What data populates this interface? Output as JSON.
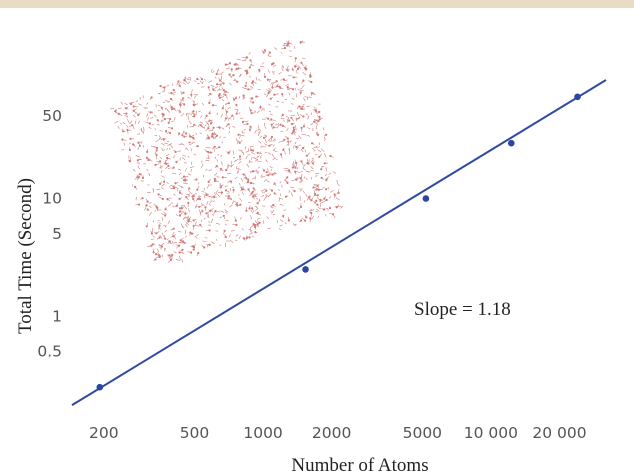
{
  "chart_data": {
    "type": "scatter",
    "xscale": "log",
    "yscale": "log",
    "xlabel": "Number of Atoms",
    "ylabel": "Total Time (Second)",
    "xlim": [
      145,
      32000
    ],
    "ylim": [
      0.16,
      150
    ],
    "xticks": [
      {
        "v": 200,
        "label": "200"
      },
      {
        "v": 500,
        "label": "500"
      },
      {
        "v": 1000,
        "label": "1000"
      },
      {
        "v": 2000,
        "label": "2000"
      },
      {
        "v": 5000,
        "label": "5000"
      },
      {
        "v": 10000,
        "label": "10 000"
      },
      {
        "v": 20000,
        "label": "20 000"
      }
    ],
    "yticks": [
      {
        "v": 0.5,
        "label": "0.5"
      },
      {
        "v": 1,
        "label": "1"
      },
      {
        "v": 5,
        "label": "5"
      },
      {
        "v": 10,
        "label": "10"
      },
      {
        "v": 50,
        "label": "50"
      }
    ],
    "points": [
      {
        "x": 192,
        "y": 0.25
      },
      {
        "x": 1536,
        "y": 2.5
      },
      {
        "x": 5184,
        "y": 10.0
      },
      {
        "x": 12288,
        "y": 29.5
      },
      {
        "x": 24000,
        "y": 73
      }
    ],
    "fit_line": {
      "x": [
        145,
        32000
      ],
      "y": [
        0.176,
        101.5
      ]
    },
    "annotation": "Slope = 1.18",
    "colors": {
      "marker": "#2b45a0",
      "line": "#2f4aa0",
      "atoms": "#c0504d",
      "axis_text": "#555555"
    }
  }
}
